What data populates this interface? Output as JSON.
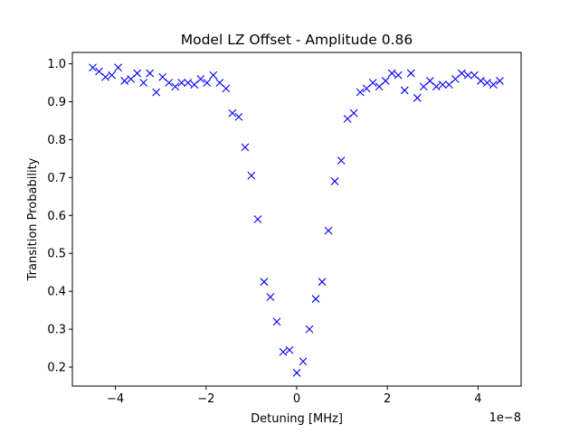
{
  "chart_data": {
    "type": "scatter",
    "title": "Model LZ Offset - Amplitude 0.86",
    "xlabel": "Detuning [MHz]",
    "ylabel": "Transition Probability",
    "x_offset_label": "1e−8",
    "x_ticks": [
      -4,
      -2,
      0,
      2,
      4
    ],
    "x_tick_labels": [
      "−4",
      "−2",
      "0",
      "2",
      "4"
    ],
    "y_ticks": [
      0.2,
      0.3,
      0.4,
      0.5,
      0.6,
      0.7,
      0.8,
      0.9,
      1.0
    ],
    "y_tick_labels": [
      "0.2",
      "0.3",
      "0.4",
      "0.5",
      "0.6",
      "0.7",
      "0.8",
      "0.9",
      "1.0"
    ],
    "xlim": [
      -4.95,
      4.95
    ],
    "ylim": [
      0.15,
      1.03
    ],
    "grid": false,
    "marker": "x",
    "color": "#0000ff",
    "x": [
      -4.5,
      -4.36,
      -4.22,
      -4.08,
      -3.94,
      -3.8,
      -3.66,
      -3.52,
      -3.38,
      -3.24,
      -3.1,
      -2.96,
      -2.82,
      -2.68,
      -2.54,
      -2.4,
      -2.26,
      -2.12,
      -1.98,
      -1.84,
      -1.7,
      -1.56,
      -1.42,
      -1.28,
      -1.14,
      -1.0,
      -0.86,
      -0.72,
      -0.58,
      -0.44,
      -0.3,
      -0.16,
      0.0,
      0.14,
      0.28,
      0.42,
      0.56,
      0.7,
      0.84,
      0.98,
      1.12,
      1.26,
      1.4,
      1.54,
      1.68,
      1.82,
      1.96,
      2.1,
      2.24,
      2.38,
      2.52,
      2.66,
      2.8,
      2.94,
      3.08,
      3.22,
      3.36,
      3.5,
      3.64,
      3.78,
      3.92,
      4.06,
      4.2,
      4.34,
      4.48
    ],
    "y": [
      0.99,
      0.98,
      0.965,
      0.97,
      0.99,
      0.955,
      0.96,
      0.975,
      0.95,
      0.975,
      0.925,
      0.965,
      0.95,
      0.94,
      0.95,
      0.95,
      0.945,
      0.96,
      0.95,
      0.97,
      0.95,
      0.935,
      0.87,
      0.86,
      0.78,
      0.705,
      0.59,
      0.425,
      0.385,
      0.32,
      0.24,
      0.245,
      0.185,
      0.215,
      0.3,
      0.38,
      0.425,
      0.56,
      0.69,
      0.745,
      0.855,
      0.87,
      0.925,
      0.935,
      0.95,
      0.94,
      0.955,
      0.975,
      0.97,
      0.93,
      0.975,
      0.91,
      0.94,
      0.955,
      0.94,
      0.945,
      0.945,
      0.96,
      0.975,
      0.97,
      0.97,
      0.955,
      0.95,
      0.945,
      0.955
    ]
  }
}
